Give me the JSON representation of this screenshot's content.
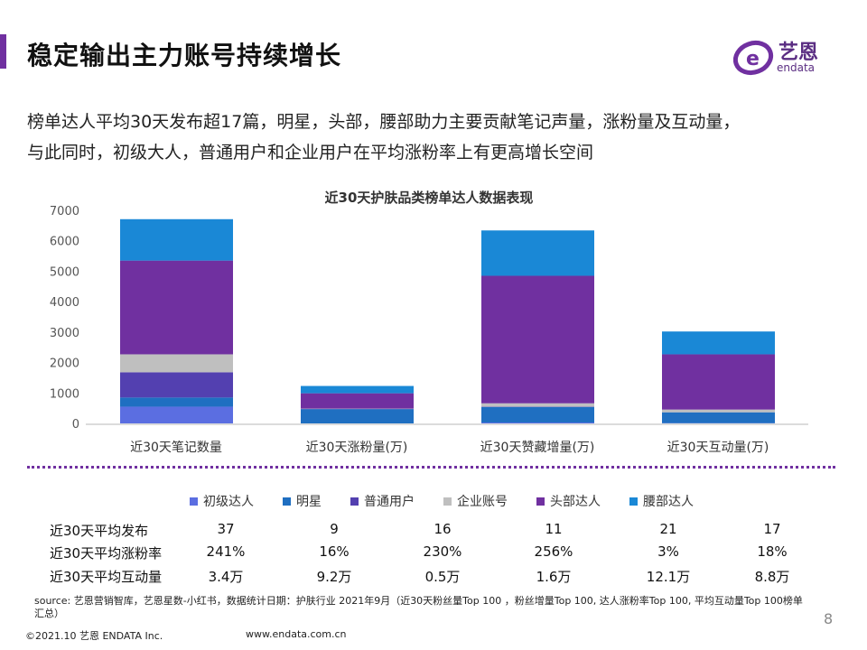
{
  "header": {
    "title": "稳定输出主力账号持续增长",
    "logo_text": "艺恩",
    "logo_sub": "endata"
  },
  "subtitle_lines": [
    "榜单达人平均30天发布超17篇，明星，头部，腰部助力主要贡献笔记声量，涨粉量及互动量，",
    "与此同时，初级大人，普通用户和企业用户在平均涨粉率上有更高增长空间"
  ],
  "chart_data": {
    "type": "bar",
    "stacked": true,
    "title": "近30天护肤品类榜单达人数据表现",
    "categories": [
      "近30天笔记数量",
      "近30天涨粉量(万)",
      "近30天赞藏增量(万)",
      "近30天互动量(万)"
    ],
    "ylim": [
      0,
      7000
    ],
    "yticks": [
      0,
      1000,
      2000,
      3000,
      4000,
      5000,
      6000,
      7000
    ],
    "grid": false,
    "legend": "bottom",
    "series": [
      {
        "name": "初级达人",
        "color": "#5b6ee1",
        "values": [
          550,
          0,
          30,
          10
        ]
      },
      {
        "name": "明星",
        "color": "#1f6fc1",
        "values": [
          300,
          470,
          510,
          355
        ]
      },
      {
        "name": "普通用户",
        "color": "#5340b0",
        "values": [
          830,
          5,
          10,
          0
        ]
      },
      {
        "name": "企业账号",
        "color": "#bfbfbf",
        "values": [
          590,
          10,
          110,
          90
        ]
      },
      {
        "name": "头部达人",
        "color": "#7030a0",
        "values": [
          3080,
          505,
          4190,
          1815
        ]
      },
      {
        "name": "腰部达人",
        "color": "#1a88d6",
        "values": [
          1360,
          240,
          1490,
          750
        ]
      }
    ]
  },
  "table": [
    {
      "label": "近30天平均发布",
      "values": [
        "37",
        "9",
        "16",
        "11",
        "21",
        "17"
      ]
    },
    {
      "label": "近30天平均涨粉率",
      "values": [
        "241%",
        "16%",
        "230%",
        "256%",
        "3%",
        "18%"
      ]
    },
    {
      "label": "近30天平均互动量",
      "values": [
        "3.4万",
        "9.2万",
        "0.5万",
        "1.6万",
        "12.1万",
        "8.8万"
      ]
    }
  ],
  "footer": {
    "source": "source: 艺恩营销智库，艺恩星数-小红书，数据统计日期：护肤行业 2021年9月（近30天粉丝量Top 100 ，粉丝增量Top 100, 达人涨粉率Top 100, 平均互动量Top 100榜单汇总）",
    "page": "8",
    "copyright": "©2021.10 艺恩 ENDATA Inc.",
    "url": "www.endata.com.cn"
  }
}
